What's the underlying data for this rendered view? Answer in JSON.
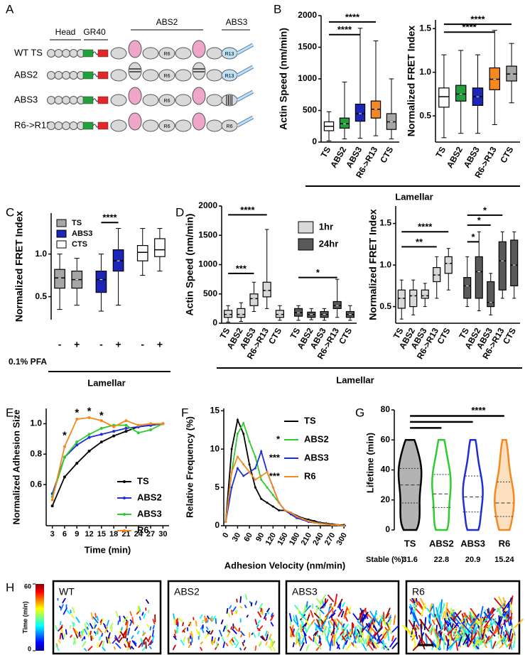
{
  "panel_labels": [
    "A",
    "B",
    "C",
    "D",
    "E",
    "F",
    "G",
    "H"
  ],
  "diagram": {
    "head_label": "Head",
    "gr40_label": "GR40",
    "abs2_label": "ABS2",
    "abs3_label": "ABS3",
    "rows": [
      {
        "name": "WT TS",
        "r6": "R6",
        "r13": "R13"
      },
      {
        "name": "ABS2",
        "r6": "R6",
        "r13": "R13"
      },
      {
        "name": "ABS3",
        "r6": "R6"
      },
      {
        "name": "R6->R13",
        "r6": "R6",
        "r13": "R6"
      }
    ]
  },
  "lamellar_labels": [
    "Lamellar",
    "Lamellar",
    "Lamellar"
  ],
  "chart_data": [
    {
      "type": "box",
      "ylabel": "Actin Speed (nm/min)",
      "categories": [
        "TS",
        "ABS2",
        "ABS3",
        "R6->R13",
        "CTS"
      ],
      "ylim": [
        0,
        2000
      ],
      "yticks": [
        0,
        500,
        1000,
        1500,
        2000
      ],
      "series": [
        {
          "colors": [
            "#ffffff",
            "#22a03c",
            "#1c25b8",
            "#f5891f",
            "#a6a6a6"
          ],
          "boxes": [
            [
              20,
              180,
              250,
              320,
              480
            ],
            [
              50,
              220,
              290,
              380,
              950
            ],
            [
              60,
              330,
              450,
              600,
              1800
            ],
            [
              100,
              380,
              520,
              650,
              1600
            ],
            [
              50,
              200,
              320,
              450,
              1000
            ]
          ]
        }
      ],
      "significance": [
        {
          "from": "TS",
          "to": "ABS3",
          "y": 1700,
          "label": "****"
        },
        {
          "from": "TS",
          "to": "R6->R13",
          "y": 1900,
          "label": "****"
        }
      ]
    },
    {
      "type": "box",
      "ylabel": "Normalized FRET Index",
      "categories": [
        "TS",
        "ABS2",
        "ABS3",
        "R6->R13",
        "CTS"
      ],
      "ylim": [
        0.2,
        1.6
      ],
      "yticks": [
        0.5,
        {
          "value": 1,
          "label": "1.0"
        },
        1.5
      ],
      "series": [
        {
          "colors": [
            "#ffffff",
            "#22a03c",
            "#1c25b8",
            "#f5891f",
            "#a6a6a6"
          ],
          "boxes": [
            [
              0.25,
              0.6,
              0.72,
              0.82,
              1.2
            ],
            [
              0.3,
              0.67,
              0.75,
              0.85,
              1.25
            ],
            [
              0.3,
              0.62,
              0.72,
              0.82,
              1.2
            ],
            [
              0.4,
              0.8,
              0.92,
              1.05,
              1.48
            ],
            [
              0.65,
              0.9,
              0.98,
              1.07,
              1.33
            ]
          ]
        }
      ],
      "significance": [
        {
          "from": "TS",
          "to": "R6->R13",
          "y": 1.46,
          "label": "****"
        },
        {
          "from": "TS",
          "to": "CTS",
          "y": 1.55,
          "label": "****"
        }
      ]
    },
    {
      "type": "box",
      "ylabel": "Normalized FRET Index",
      "categories": [
        "-",
        "+"
      ],
      "x_row_label": "0.1% PFA",
      "ylim": [
        0.23,
        1.48
      ],
      "yticks": [
        0.5,
        {
          "value": 1,
          "label": "1.0"
        }
      ],
      "legend": true,
      "series": [
        {
          "name": "TS",
          "color": "#a6a6a6",
          "boxes": [
            [
              0.35,
              0.6,
              0.72,
              0.82,
              1.0
            ],
            [
              0.4,
              0.6,
              0.7,
              0.8,
              0.95
            ]
          ]
        },
        {
          "name": "ABS3",
          "color": "#1c25b8",
          "boxes": [
            [
              0.33,
              0.55,
              0.7,
              0.8,
              1.0
            ],
            [
              0.4,
              0.8,
              0.92,
              1.05,
              1.3
            ]
          ]
        },
        {
          "name": "CTS",
          "color": "#ffffff",
          "boxes": [
            [
              0.75,
              0.92,
              1.02,
              1.1,
              1.3
            ],
            [
              0.8,
              0.97,
              1.05,
              1.18,
              1.3
            ]
          ]
        }
      ],
      "significance": [
        {
          "group": "ABS3",
          "from": "-",
          "to": "+",
          "y": 1.37,
          "label": "****"
        }
      ]
    },
    {
      "type": "box",
      "ylabel": "Actin Speed (nm/min)",
      "categories": [
        "TS",
        "ABS2",
        "ABS3",
        "R6->R13",
        "CTS"
      ],
      "ylim": [
        0,
        2000
      ],
      "yticks": [
        0,
        500,
        1000,
        1500,
        2000
      ],
      "legend": true,
      "series": [
        {
          "name": "1hr",
          "color": "#d9d9d9",
          "boxes": [
            [
              20,
              100,
              150,
              220,
              300
            ],
            [
              30,
              100,
              150,
              250,
              350
            ],
            [
              200,
              300,
              420,
              500,
              700
            ],
            [
              250,
              450,
              560,
              700,
              1600
            ],
            [
              50,
              100,
              150,
              220,
              300
            ]
          ]
        },
        {
          "name": "24hr",
          "color": "#595959",
          "boxes": [
            [
              50,
              120,
              180,
              250,
              300
            ],
            [
              60,
              100,
              150,
              190,
              250
            ],
            [
              50,
              100,
              150,
              200,
              250
            ],
            [
              100,
              250,
              300,
              370,
              750
            ],
            [
              50,
              100,
              150,
              200,
              300
            ]
          ]
        }
      ],
      "significance": [
        {
          "group": "1hr",
          "from": "TS",
          "to": "R6->R13",
          "y": 1850,
          "label": "****"
        },
        {
          "group": "1hr",
          "from": "TS",
          "to": "ABS3",
          "y": 850,
          "label": "***"
        },
        {
          "group": "24hr",
          "from": "TS",
          "to": "R6->R13",
          "y": 780,
          "label": "*"
        }
      ]
    },
    {
      "type": "box",
      "ylabel": "Normalized FRET Index",
      "categories": [
        "TS",
        "ABS2",
        "ABS3",
        "R6->R13",
        "CTS"
      ],
      "ylim": [
        0.3,
        1.71
      ],
      "yticks": [
        0.5,
        {
          "value": 1,
          "label": "1.0"
        },
        1.5
      ],
      "series": [
        {
          "name": "1hr",
          "color": "#d9d9d9",
          "boxes": [
            [
              0.35,
              0.48,
              0.6,
              0.7,
              0.82
            ],
            [
              0.4,
              0.5,
              0.63,
              0.7,
              0.82
            ],
            [
              0.5,
              0.6,
              0.63,
              0.7,
              0.78
            ],
            [
              0.6,
              0.8,
              0.88,
              0.97,
              1.1
            ],
            [
              0.7,
              0.9,
              1.02,
              1.1,
              1.2
            ]
          ]
        },
        {
          "name": "24hr",
          "color": "#595959",
          "boxes": [
            [
              0.5,
              0.6,
              0.75,
              0.85,
              1.1
            ],
            [
              0.45,
              0.6,
              0.92,
              1.1,
              1.4
            ],
            [
              0.4,
              0.5,
              0.55,
              0.8,
              0.9
            ],
            [
              0.6,
              0.7,
              1.05,
              1.28,
              1.4
            ],
            [
              0.6,
              0.75,
              1.0,
              1.3,
              1.4
            ]
          ]
        }
      ],
      "significance": [
        {
          "group": "1hr",
          "from": "TS",
          "to": "CTS",
          "y": 1.4,
          "label": "****"
        },
        {
          "group": "1hr",
          "from": "TS",
          "to": "R6->R13",
          "y": 1.22,
          "label": "**"
        },
        {
          "group": "24hr",
          "from": "TS",
          "to": "R6->R13",
          "y": 1.6,
          "label": "*"
        },
        {
          "group": "24hr",
          "from": "TS",
          "to": "ABS3",
          "y": 1.48,
          "label": "*"
        },
        {
          "group": "24hr",
          "from": "TS",
          "to": "ABS2",
          "y": 1.28,
          "label": "*"
        }
      ]
    },
    {
      "type": "line",
      "xlabel": "Time (min)",
      "ylabel": "Normalized Adhesion Size",
      "x": [
        3,
        6,
        9,
        12,
        15,
        18,
        21,
        24,
        27,
        30
      ],
      "xlim": [
        1.5,
        31.5
      ],
      "xticks": [
        3,
        6,
        9,
        12,
        15,
        18,
        21,
        24,
        27,
        30
      ],
      "ylim": [
        0.33,
        1.1
      ],
      "yticks": [
        0.6,
        0.8,
        {
          "value": 1,
          "label": "1.0"
        }
      ],
      "series": [
        {
          "name": "TS",
          "color": "#000000",
          "values": [
            0.46,
            0.65,
            0.74,
            0.82,
            0.88,
            0.92,
            0.95,
            0.98,
            0.99,
            1.0
          ]
        },
        {
          "name": "ABS2",
          "color": "#1f2fd1",
          "values": [
            0.54,
            0.78,
            0.86,
            0.91,
            0.93,
            0.95,
            0.97,
            0.98,
            0.99,
            1.0
          ]
        },
        {
          "name": "ABS3",
          "color": "#2ecc2e",
          "values": [
            0.52,
            0.78,
            0.88,
            0.93,
            0.97,
            0.99,
            0.99,
            0.94,
            0.96,
            1.0
          ]
        },
        {
          "name": "R6",
          "color": "#f5891f",
          "values": [
            0.5,
            0.85,
            1.03,
            1.04,
            1.02,
            0.98,
            1.02,
            0.99,
            1.0,
            1.0
          ]
        }
      ],
      "annotations": [
        {
          "x": 6,
          "y": 0.92,
          "text": "*"
        },
        {
          "x": 9,
          "y": 1.07,
          "text": "*"
        },
        {
          "x": 12,
          "y": 1.08,
          "text": "*"
        },
        {
          "x": 15,
          "y": 1.05,
          "text": "*"
        }
      ]
    },
    {
      "type": "line",
      "xlabel": "Adhesion Velocity (nm/min)",
      "ylabel": "Relative Frequency (%)",
      "x": [
        0,
        15,
        30,
        45,
        60,
        75,
        90,
        105,
        120,
        135,
        150,
        165,
        180,
        195,
        210,
        225,
        240,
        255,
        270,
        285,
        300
      ],
      "xlim": [
        -5,
        305
      ],
      "xticks": [
        0,
        30,
        60,
        90,
        120,
        150,
        180,
        210,
        240,
        270,
        300
      ],
      "ylim": [
        0,
        15.3
      ],
      "yticks": [
        0,
        5,
        10,
        15
      ],
      "series": [
        {
          "name": "TS",
          "color": "#000000",
          "values": [
            0.5,
            10,
            13.8,
            12,
            8,
            5,
            3.5,
            3,
            2.5,
            2,
            2,
            1.7,
            1.3,
            1,
            0.8,
            0.6,
            0.4,
            0.3,
            0.2,
            0.1,
            0.1
          ]
        },
        {
          "name": "ABS2",
          "color": "#2ecc2e",
          "annotation": "*",
          "values": [
            0.5,
            7,
            12,
            13.4,
            11,
            9,
            6,
            5,
            4,
            3,
            2,
            1.5,
            1.2,
            0.9,
            0.6,
            0.4,
            0.3,
            0.2,
            0.1,
            0.1,
            0
          ]
        },
        {
          "name": "ABS3",
          "color": "#1f2fd1",
          "annotation": "***",
          "values": [
            0.5,
            5,
            7.5,
            6.5,
            7,
            7.5,
            9.7,
            7,
            5,
            3,
            2,
            1.5,
            1,
            0.8,
            0.5,
            0.4,
            0.3,
            0.2,
            0.1,
            0.1,
            0
          ]
        },
        {
          "name": "R6",
          "color": "#f5891f",
          "annotation": "***",
          "values": [
            0.5,
            7,
            9,
            8,
            7,
            6,
            6.5,
            7,
            5,
            3,
            2,
            1.7,
            1.2,
            0.9,
            0.6,
            0.4,
            0.3,
            0.2,
            0.1,
            0.1,
            0
          ]
        }
      ]
    },
    {
      "type": "violin",
      "ylabel": "Lifetime (min)",
      "categories": [
        "TS",
        "ABS2",
        "ABS3",
        "R6"
      ],
      "ylim": [
        0,
        80
      ],
      "yticks": [
        0,
        20,
        40,
        60,
        80
      ],
      "colors": [
        "#000000",
        "#2ecc2e",
        "#1f2fd1",
        "#f5891f"
      ],
      "fills": [
        "#b3b3b3",
        "#ffffff",
        "#ffffff",
        "#fde0c0"
      ],
      "mins": [
        0,
        0,
        0,
        0
      ],
      "maxs": [
        60,
        60,
        60,
        60
      ],
      "q1": [
        18,
        15,
        12,
        9
      ],
      "medians": [
        30,
        24,
        22,
        18
      ],
      "q3": [
        41,
        37,
        36,
        32
      ],
      "significance": [
        {
          "from": "TS",
          "to": "R6",
          "y": 76,
          "label": "****"
        },
        {
          "from": "TS",
          "to": "ABS3",
          "y": 72
        },
        {
          "from": "TS",
          "to": "ABS2",
          "y": 68
        }
      ],
      "stable_label": "Stable (%):",
      "stable_values": [
        31.6,
        22.8,
        20.9,
        15.24
      ]
    }
  ],
  "heatmap": {
    "colorbar_label": "Time (min)",
    "colorbar_lim": [
      0,
      60
    ],
    "colorbar_ticks": [
      0,
      60
    ],
    "images": [
      "WT",
      "ABS2",
      "ABS3",
      "R6"
    ]
  }
}
